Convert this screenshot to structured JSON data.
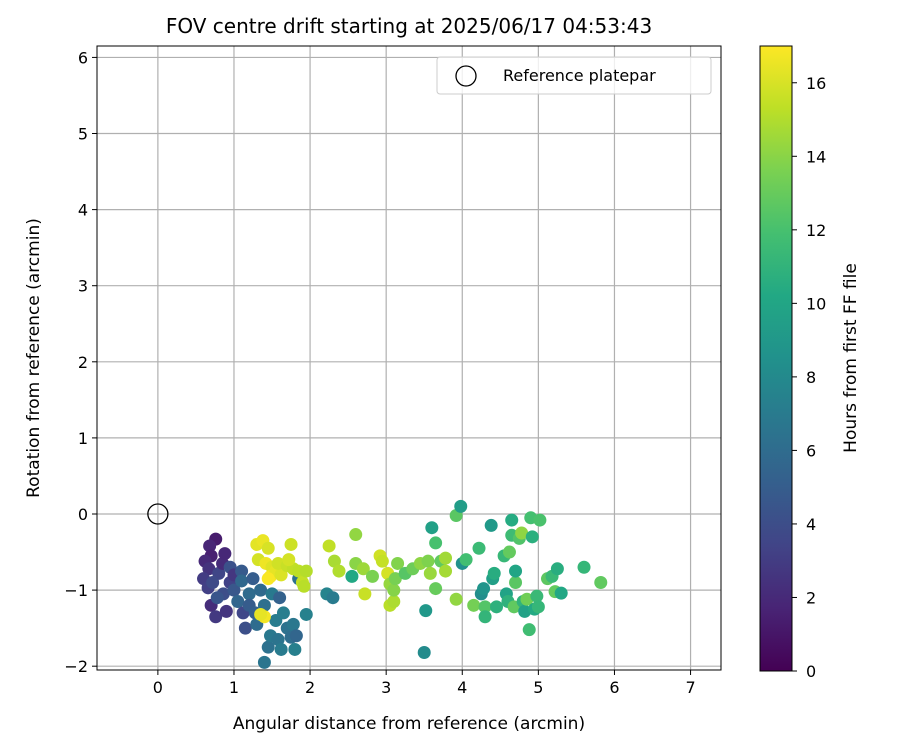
{
  "chart_data": {
    "type": "scatter",
    "title": "FOV centre drift starting at 2025/06/17 04:53:43",
    "xlabel": "Angular distance from reference (arcmin)",
    "ylabel": "Rotation from reference (arcmin)",
    "xlim": [
      -0.8,
      7.4
    ],
    "ylim": [
      -2.05,
      6.15
    ],
    "xticks": [
      "0",
      "1",
      "2",
      "3",
      "4",
      "5",
      "6",
      "7"
    ],
    "yticks": [
      "−2",
      "−1",
      "0",
      "1",
      "2",
      "3",
      "4",
      "5",
      "6"
    ],
    "grid": true,
    "legend": {
      "position": "top-right",
      "entries": [
        "Reference platepar"
      ]
    },
    "reference_point": {
      "x": 0,
      "y": 0,
      "label": "Reference platepar"
    },
    "colorbar": {
      "label": "Hours from first FF file",
      "colormap": "viridis",
      "range": [
        0,
        17
      ],
      "ticks": [
        "0",
        "2",
        "4",
        "6",
        "8",
        "10",
        "12",
        "14",
        "16"
      ]
    },
    "points": [
      {
        "x": 0.76,
        "y": -0.33,
        "h": 1.3
      },
      {
        "x": 0.68,
        "y": -0.42,
        "h": 1.8
      },
      {
        "x": 0.7,
        "y": -0.55,
        "h": 1.5
      },
      {
        "x": 0.62,
        "y": -0.62,
        "h": 2.0
      },
      {
        "x": 0.67,
        "y": -0.72,
        "h": 2.5
      },
      {
        "x": 0.6,
        "y": -0.85,
        "h": 3.0
      },
      {
        "x": 0.66,
        "y": -0.97,
        "h": 3.2
      },
      {
        "x": 0.7,
        "y": -1.2,
        "h": 2.2
      },
      {
        "x": 0.76,
        "y": -1.35,
        "h": 2.8
      },
      {
        "x": 0.8,
        "y": -0.78,
        "h": 3.5
      },
      {
        "x": 0.85,
        "y": -0.65,
        "h": 2.1
      },
      {
        "x": 0.88,
        "y": -0.52,
        "h": 1.9
      },
      {
        "x": 0.86,
        "y": -1.05,
        "h": 4.0
      },
      {
        "x": 0.9,
        "y": -1.28,
        "h": 2.6
      },
      {
        "x": 0.95,
        "y": -0.9,
        "h": 3.3
      },
      {
        "x": 0.95,
        "y": -0.7,
        "h": 4.2
      },
      {
        "x": 0.72,
        "y": -0.9,
        "h": 3.8
      },
      {
        "x": 0.78,
        "y": -1.1,
        "h": 4.5
      },
      {
        "x": 1.0,
        "y": -1.0,
        "h": 4.6
      },
      {
        "x": 1.05,
        "y": -1.15,
        "h": 5.5
      },
      {
        "x": 1.0,
        "y": -0.8,
        "h": 2.7
      },
      {
        "x": 1.1,
        "y": -0.75,
        "h": 4.8
      },
      {
        "x": 1.12,
        "y": -1.3,
        "h": 3.6
      },
      {
        "x": 1.1,
        "y": -0.88,
        "h": 5.7
      },
      {
        "x": 1.2,
        "y": -1.05,
        "h": 5.9
      },
      {
        "x": 1.15,
        "y": -1.5,
        "h": 4.1
      },
      {
        "x": 1.2,
        "y": -1.2,
        "h": 4.9
      },
      {
        "x": 1.28,
        "y": -1.3,
        "h": 5.2
      },
      {
        "x": 1.3,
        "y": -1.45,
        "h": 6.0
      },
      {
        "x": 1.35,
        "y": -1.0,
        "h": 5.8
      },
      {
        "x": 1.4,
        "y": -1.2,
        "h": 6.2
      },
      {
        "x": 1.4,
        "y": -1.95,
        "h": 6.6
      },
      {
        "x": 1.45,
        "y": -1.75,
        "h": 6.3
      },
      {
        "x": 1.48,
        "y": -1.6,
        "h": 6.8
      },
      {
        "x": 1.5,
        "y": -1.05,
        "h": 6.9
      },
      {
        "x": 1.55,
        "y": -1.4,
        "h": 7.1
      },
      {
        "x": 1.58,
        "y": -1.65,
        "h": 6.5
      },
      {
        "x": 1.62,
        "y": -1.78,
        "h": 7.0
      },
      {
        "x": 1.65,
        "y": -1.3,
        "h": 7.2
      },
      {
        "x": 1.7,
        "y": -1.5,
        "h": 6.4
      },
      {
        "x": 1.75,
        "y": -1.62,
        "h": 6.1
      },
      {
        "x": 1.78,
        "y": -1.45,
        "h": 6.7
      },
      {
        "x": 1.8,
        "y": -1.78,
        "h": 7.3
      },
      {
        "x": 1.82,
        "y": -1.6,
        "h": 5.6
      },
      {
        "x": 1.85,
        "y": -0.85,
        "h": 6.4
      },
      {
        "x": 1.95,
        "y": -1.32,
        "h": 7.4
      },
      {
        "x": 1.6,
        "y": -1.1,
        "h": 5.3
      },
      {
        "x": 1.25,
        "y": -0.85,
        "h": 5.0
      },
      {
        "x": 1.3,
        "y": -0.4,
        "h": 16.3
      },
      {
        "x": 1.38,
        "y": -0.35,
        "h": 16.5
      },
      {
        "x": 1.45,
        "y": -0.45,
        "h": 16.0
      },
      {
        "x": 1.32,
        "y": -0.6,
        "h": 15.9
      },
      {
        "x": 1.42,
        "y": -0.65,
        "h": 16.6
      },
      {
        "x": 1.5,
        "y": -0.7,
        "h": 16.2
      },
      {
        "x": 1.48,
        "y": -0.82,
        "h": 16.8
      },
      {
        "x": 1.55,
        "y": -0.75,
        "h": 16.4
      },
      {
        "x": 1.62,
        "y": -0.8,
        "h": 16.1
      },
      {
        "x": 1.58,
        "y": -0.65,
        "h": 15.8
      },
      {
        "x": 1.7,
        "y": -0.68,
        "h": 15.6
      },
      {
        "x": 1.75,
        "y": -0.4,
        "h": 15.7
      },
      {
        "x": 1.78,
        "y": -0.72,
        "h": 15.4
      },
      {
        "x": 1.85,
        "y": -0.75,
        "h": 15.3
      },
      {
        "x": 1.9,
        "y": -0.9,
        "h": 15.5
      },
      {
        "x": 1.92,
        "y": -0.95,
        "h": 15.2
      },
      {
        "x": 1.95,
        "y": -0.75,
        "h": 15.1
      },
      {
        "x": 1.4,
        "y": -1.35,
        "h": 16.7
      },
      {
        "x": 1.35,
        "y": -1.32,
        "h": 16.4
      },
      {
        "x": 1.45,
        "y": -0.85,
        "h": 16.9
      },
      {
        "x": 1.72,
        "y": -0.6,
        "h": 15.9
      },
      {
        "x": 2.22,
        "y": -1.05,
        "h": 7.6
      },
      {
        "x": 2.3,
        "y": -1.1,
        "h": 7.0
      },
      {
        "x": 2.55,
        "y": -0.82,
        "h": 10.2
      },
      {
        "x": 2.25,
        "y": -0.42,
        "h": 15.4
      },
      {
        "x": 2.32,
        "y": -0.62,
        "h": 14.8
      },
      {
        "x": 2.38,
        "y": -0.75,
        "h": 15.0
      },
      {
        "x": 2.6,
        "y": -0.27,
        "h": 14.2
      },
      {
        "x": 2.6,
        "y": -0.65,
        "h": 14.0
      },
      {
        "x": 2.7,
        "y": -0.72,
        "h": 14.5
      },
      {
        "x": 2.72,
        "y": -1.05,
        "h": 15.6
      },
      {
        "x": 2.82,
        "y": -0.82,
        "h": 13.6
      },
      {
        "x": 2.92,
        "y": -0.55,
        "h": 15.8
      },
      {
        "x": 2.95,
        "y": -0.62,
        "h": 15.5
      },
      {
        "x": 3.02,
        "y": -0.78,
        "h": 15.9
      },
      {
        "x": 3.05,
        "y": -0.92,
        "h": 14.3
      },
      {
        "x": 3.05,
        "y": -1.2,
        "h": 15.2
      },
      {
        "x": 3.1,
        "y": -1.15,
        "h": 14.9
      },
      {
        "x": 3.1,
        "y": -1.0,
        "h": 13.9
      },
      {
        "x": 3.12,
        "y": -0.85,
        "h": 13.5
      },
      {
        "x": 3.15,
        "y": -0.65,
        "h": 13.8
      },
      {
        "x": 3.25,
        "y": -0.78,
        "h": 12.5
      },
      {
        "x": 3.35,
        "y": -0.72,
        "h": 13.2
      },
      {
        "x": 3.45,
        "y": -0.65,
        "h": 14.1
      },
      {
        "x": 3.5,
        "y": -1.82,
        "h": 8.1
      },
      {
        "x": 3.52,
        "y": -1.27,
        "h": 9.0
      },
      {
        "x": 3.55,
        "y": -0.62,
        "h": 13.7
      },
      {
        "x": 3.58,
        "y": -0.78,
        "h": 14.4
      },
      {
        "x": 3.6,
        "y": -0.18,
        "h": 9.6
      },
      {
        "x": 3.65,
        "y": -0.38,
        "h": 12.0
      },
      {
        "x": 3.65,
        "y": -0.98,
        "h": 13.0
      },
      {
        "x": 3.72,
        "y": -0.62,
        "h": 12.8
      },
      {
        "x": 3.78,
        "y": -0.58,
        "h": 14.6
      },
      {
        "x": 3.78,
        "y": -0.75,
        "h": 14.7
      },
      {
        "x": 3.92,
        "y": -0.02,
        "h": 12.6
      },
      {
        "x": 3.92,
        "y": -1.12,
        "h": 14.2
      },
      {
        "x": 3.98,
        "y": 0.1,
        "h": 9.4
      },
      {
        "x": 4.0,
        "y": -0.65,
        "h": 8.6
      },
      {
        "x": 4.05,
        "y": -0.6,
        "h": 11.8
      },
      {
        "x": 4.15,
        "y": -1.2,
        "h": 13.4
      },
      {
        "x": 4.22,
        "y": -0.45,
        "h": 11.5
      },
      {
        "x": 4.25,
        "y": -1.05,
        "h": 8.3
      },
      {
        "x": 4.28,
        "y": -0.98,
        "h": 8.8
      },
      {
        "x": 4.3,
        "y": -1.22,
        "h": 12.4
      },
      {
        "x": 4.3,
        "y": -1.35,
        "h": 11.1
      },
      {
        "x": 4.38,
        "y": -0.15,
        "h": 9.1
      },
      {
        "x": 4.4,
        "y": -0.85,
        "h": 9.5
      },
      {
        "x": 4.42,
        "y": -0.78,
        "h": 10.5
      },
      {
        "x": 4.45,
        "y": -1.22,
        "h": 10.8
      },
      {
        "x": 4.55,
        "y": -0.55,
        "h": 11.3
      },
      {
        "x": 4.58,
        "y": -1.05,
        "h": 9.8
      },
      {
        "x": 4.6,
        "y": -1.15,
        "h": 10.9
      },
      {
        "x": 4.62,
        "y": -0.5,
        "h": 12.9
      },
      {
        "x": 4.65,
        "y": -0.08,
        "h": 10.4
      },
      {
        "x": 4.65,
        "y": -0.28,
        "h": 11.6
      },
      {
        "x": 4.68,
        "y": -1.22,
        "h": 12.8
      },
      {
        "x": 4.7,
        "y": -0.9,
        "h": 12.6
      },
      {
        "x": 4.7,
        "y": -0.75,
        "h": 10.0
      },
      {
        "x": 4.75,
        "y": -0.32,
        "h": 12.3
      },
      {
        "x": 4.78,
        "y": -0.25,
        "h": 14.1
      },
      {
        "x": 4.8,
        "y": -1.15,
        "h": 11.0
      },
      {
        "x": 4.82,
        "y": -1.28,
        "h": 9.7
      },
      {
        "x": 4.85,
        "y": -1.12,
        "h": 13.3
      },
      {
        "x": 4.88,
        "y": -1.52,
        "h": 11.7
      },
      {
        "x": 4.9,
        "y": -0.05,
        "h": 11.9
      },
      {
        "x": 4.92,
        "y": -0.3,
        "h": 10.7
      },
      {
        "x": 4.95,
        "y": -1.25,
        "h": 10.3
      },
      {
        "x": 4.98,
        "y": -1.08,
        "h": 11.4
      },
      {
        "x": 5.0,
        "y": -1.22,
        "h": 11.2
      },
      {
        "x": 5.02,
        "y": -0.08,
        "h": 12.1
      },
      {
        "x": 5.12,
        "y": -0.85,
        "h": 12.7
      },
      {
        "x": 5.18,
        "y": -0.82,
        "h": 11.4
      },
      {
        "x": 5.22,
        "y": -1.02,
        "h": 12.9
      },
      {
        "x": 5.25,
        "y": -0.72,
        "h": 10.6
      },
      {
        "x": 5.3,
        "y": -1.04,
        "h": 10.1
      },
      {
        "x": 5.6,
        "y": -0.7,
        "h": 11.2
      },
      {
        "x": 5.82,
        "y": -0.9,
        "h": 12.8
      }
    ]
  }
}
